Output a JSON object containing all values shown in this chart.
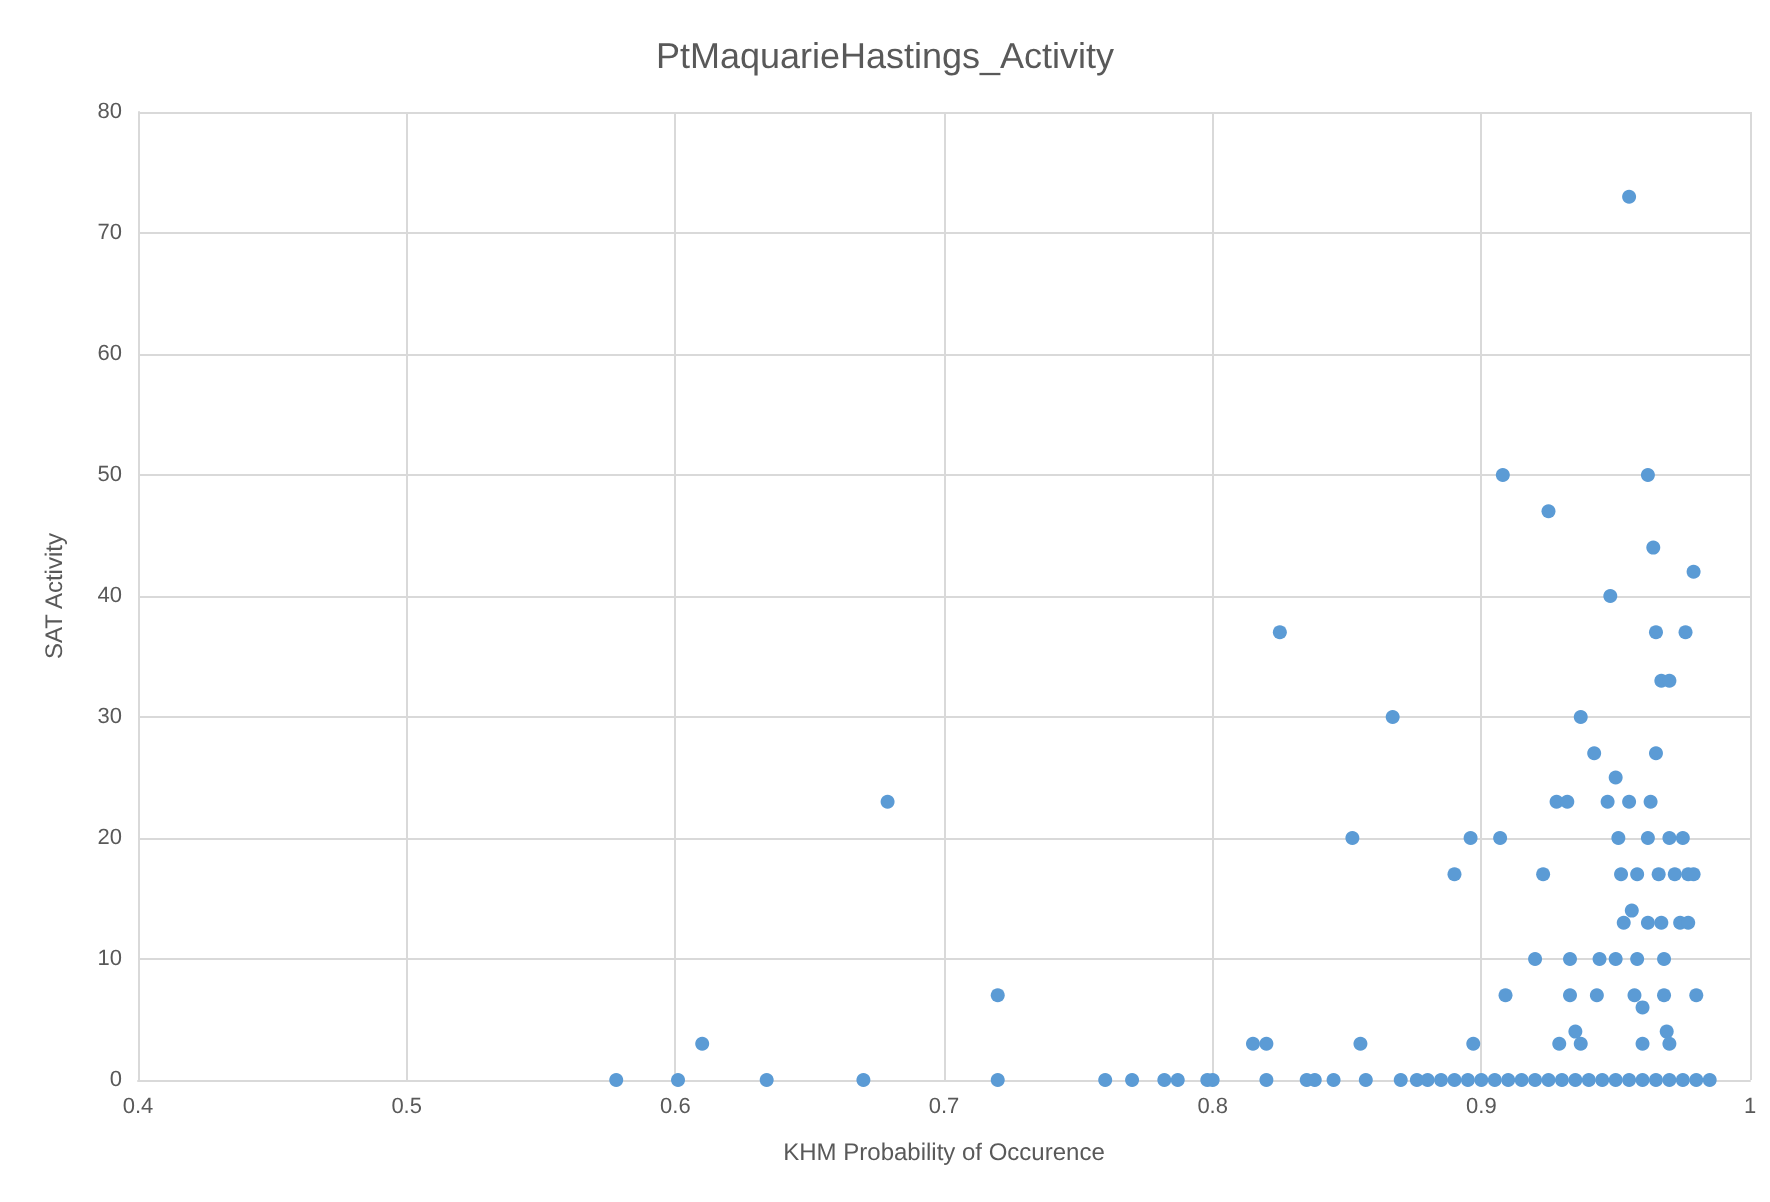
{
  "chart_data": {
    "type": "scatter",
    "title": "PtMaquarieHastings_Activity",
    "xlabel": "KHM Probability of Occurence",
    "ylabel": "SAT Activity",
    "xlim": [
      0.4,
      1
    ],
    "xticks": [
      0.4,
      0.5,
      0.6,
      0.7,
      0.8,
      0.9,
      1
    ],
    "ylim": [
      0,
      80
    ],
    "yticks": [
      0,
      10,
      20,
      30,
      40,
      50,
      60,
      70,
      80
    ],
    "grid": true,
    "marker": "circle",
    "series": [
      {
        "color": "#5b9bd5",
        "x": [
          0.578,
          0.601,
          0.61,
          0.634,
          0.67,
          0.679,
          0.72,
          0.72,
          0.76,
          0.77,
          0.782,
          0.787,
          0.798,
          0.8,
          0.815,
          0.82,
          0.82,
          0.825,
          0.835,
          0.838,
          0.845,
          0.852,
          0.855,
          0.857,
          0.867,
          0.87,
          0.876,
          0.88,
          0.89,
          0.896,
          0.897,
          0.908,
          0.907,
          0.909,
          0.92,
          0.923,
          0.925,
          0.928,
          0.929,
          0.932,
          0.933,
          0.933,
          0.937,
          0.935,
          0.937,
          0.942,
          0.944,
          0.943,
          0.948,
          0.95,
          0.947,
          0.95,
          0.951,
          0.952,
          0.953,
          0.955,
          0.955,
          0.956,
          0.957,
          0.958,
          0.958,
          0.96,
          0.96,
          0.962,
          0.962,
          0.962,
          0.963,
          0.964,
          0.965,
          0.965,
          0.966,
          0.967,
          0.967,
          0.968,
          0.968,
          0.969,
          0.97,
          0.97,
          0.97,
          0.972,
          0.974,
          0.975,
          0.976,
          0.977,
          0.977,
          0.979,
          0.979,
          0.98,
          0.885,
          0.89,
          0.895,
          0.9,
          0.905,
          0.91,
          0.915,
          0.92,
          0.925,
          0.93,
          0.935,
          0.94,
          0.945,
          0.95,
          0.955,
          0.96,
          0.965,
          0.97,
          0.975,
          0.98,
          0.985
        ],
        "values": [
          0,
          0,
          3,
          0,
          0,
          23,
          7,
          0,
          0,
          0,
          0,
          0,
          0,
          0,
          3,
          3,
          0,
          37,
          0,
          0,
          0,
          20,
          3,
          0,
          30,
          0,
          0,
          0,
          17,
          20,
          3,
          50,
          20,
          7,
          10,
          17,
          47,
          23,
          3,
          23,
          10,
          7,
          30,
          4,
          3,
          27,
          10,
          7,
          40,
          25,
          23,
          10,
          20,
          17,
          13,
          73,
          23,
          14,
          7,
          17,
          10,
          6,
          3,
          50,
          20,
          13,
          23,
          44,
          37,
          27,
          17,
          33,
          13,
          10,
          7,
          4,
          33,
          20,
          3,
          17,
          13,
          20,
          37,
          13,
          17,
          42,
          17,
          7,
          0,
          0,
          0,
          0,
          0,
          0,
          0,
          0,
          0,
          0,
          0,
          0,
          0,
          0,
          0,
          0,
          0,
          0,
          0,
          0,
          0
        ]
      }
    ]
  }
}
